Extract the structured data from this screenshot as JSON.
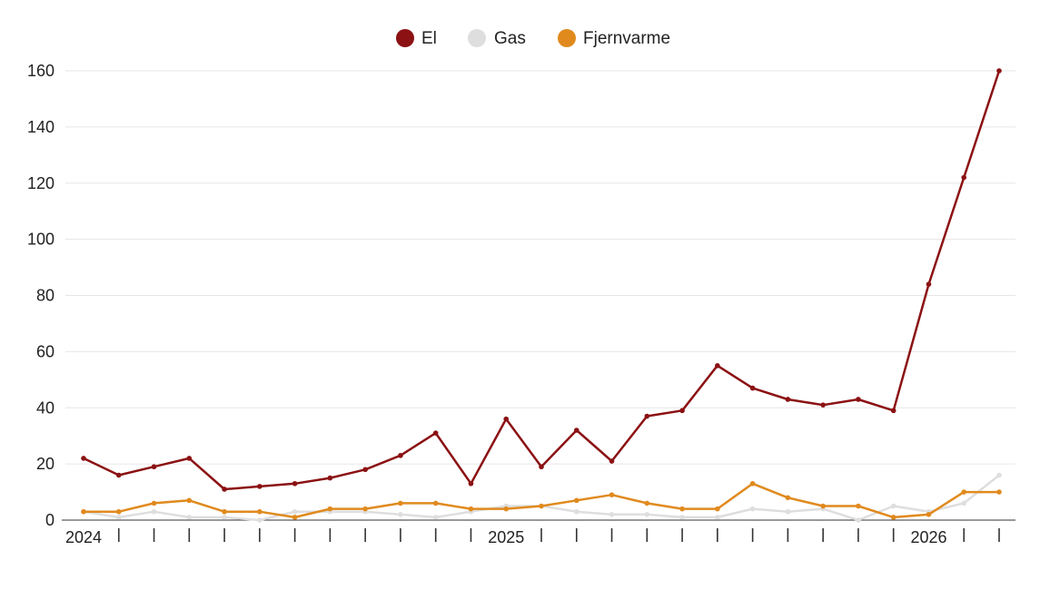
{
  "chart_data": {
    "type": "line",
    "title": "",
    "xlabel": "",
    "ylabel": "",
    "ylim": [
      0,
      160
    ],
    "yticks": [
      0,
      20,
      40,
      60,
      80,
      100,
      120,
      140,
      160
    ],
    "grid": "horizontal",
    "legend": "top-center",
    "x_tick_labels": [
      "2024",
      "",
      "",
      "",
      "",
      "",
      "",
      "",
      "",
      "",
      "",
      "",
      "2025",
      "",
      "",
      "",
      "",
      "",
      "",
      "",
      "",
      "",
      "",
      "",
      "2026",
      "",
      ""
    ],
    "series": [
      {
        "name": "El",
        "color": "#8b1113",
        "values": [
          22,
          16,
          19,
          22,
          11,
          12,
          13,
          15,
          18,
          23,
          31,
          13,
          36,
          19,
          32,
          21,
          37,
          39,
          55,
          47,
          43,
          41,
          43,
          39,
          84,
          122,
          160
        ]
      },
      {
        "name": "Gas",
        "color": "#dedede",
        "values": [
          3,
          1,
          3,
          1,
          1,
          0,
          3,
          3,
          3,
          2,
          1,
          3,
          5,
          5,
          3,
          2,
          2,
          1,
          1,
          4,
          3,
          4,
          0,
          5,
          3,
          6,
          16
        ]
      },
      {
        "name": "Fjernvarme",
        "color": "#e08a1e",
        "values": [
          3,
          3,
          6,
          7,
          3,
          3,
          1,
          4,
          4,
          6,
          6,
          4,
          4,
          5,
          7,
          9,
          6,
          4,
          4,
          13,
          8,
          5,
          5,
          1,
          2,
          10,
          10
        ]
      }
    ]
  }
}
